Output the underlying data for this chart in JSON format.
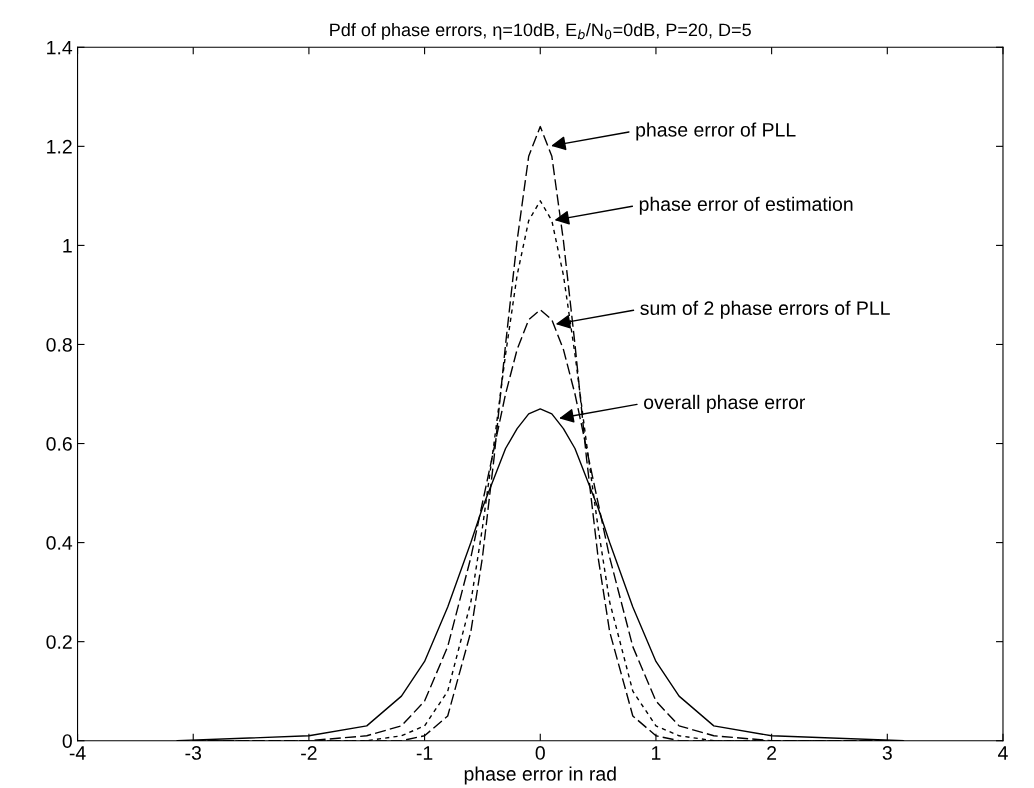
{
  "chart_data": {
    "type": "line",
    "title": "Pdf of phase errors, η=10dB, E$_{b}$/N$_{0}$=0dB, P=20, D=5",
    "xlabel": "phase error in rad",
    "xlim": [
      -4,
      4
    ],
    "xticks": [
      -4,
      -3,
      -2,
      -1,
      0,
      1,
      2,
      3,
      4
    ],
    "ylim": [
      0,
      1.4
    ],
    "yticks": [
      0,
      0.2,
      0.4,
      0.6,
      0.8,
      1,
      1.2,
      1.4
    ],
    "grid": false,
    "marker": "none",
    "series": [
      {
        "color": "#000000",
        "line_style": "dashed",
        "x": [
          -3.14,
          -2,
          -1.5,
          -1.2,
          -1,
          -0.8,
          -0.6,
          -0.5,
          -0.4,
          -0.3,
          -0.2,
          -0.1,
          0,
          0.1,
          0.2,
          0.3,
          0.4,
          0.5,
          0.6,
          0.8,
          1,
          1.2,
          1.5,
          2,
          3.14
        ],
        "values": [
          0,
          0,
          0,
          0,
          0.01,
          0.05,
          0.22,
          0.37,
          0.57,
          0.8,
          1.01,
          1.18,
          1.24,
          1.18,
          1.01,
          0.8,
          0.57,
          0.37,
          0.22,
          0.05,
          0.01,
          0,
          0,
          0,
          0
        ]
      },
      {
        "color": "#000000",
        "line_style": "dotted",
        "x": [
          -3.14,
          -2,
          -1.5,
          -1.2,
          -1,
          -0.8,
          -0.6,
          -0.5,
          -0.4,
          -0.3,
          -0.2,
          -0.1,
          0,
          0.1,
          0.2,
          0.3,
          0.4,
          0.5,
          0.6,
          0.8,
          1,
          1.2,
          1.5,
          2,
          3.14
        ],
        "values": [
          0,
          0,
          0,
          0.01,
          0.03,
          0.1,
          0.28,
          0.43,
          0.6,
          0.78,
          0.94,
          1.05,
          1.09,
          1.05,
          0.94,
          0.78,
          0.6,
          0.43,
          0.28,
          0.1,
          0.03,
          0.01,
          0,
          0,
          0
        ]
      },
      {
        "color": "#000000",
        "line_style": "dashed",
        "x": [
          -3.14,
          -2,
          -1.5,
          -1.2,
          -1,
          -0.8,
          -0.6,
          -0.5,
          -0.4,
          -0.3,
          -0.2,
          -0.1,
          0,
          0.1,
          0.2,
          0.3,
          0.4,
          0.5,
          0.6,
          0.8,
          1,
          1.2,
          1.5,
          2,
          3.14
        ],
        "values": [
          0,
          0,
          0.01,
          0.03,
          0.08,
          0.19,
          0.37,
          0.48,
          0.59,
          0.7,
          0.79,
          0.85,
          0.87,
          0.85,
          0.79,
          0.7,
          0.59,
          0.48,
          0.37,
          0.19,
          0.08,
          0.03,
          0.01,
          0,
          0
        ]
      },
      {
        "color": "#000000",
        "line_style": "solid",
        "x": [
          -3.14,
          -2,
          -1.5,
          -1.2,
          -1,
          -0.8,
          -0.6,
          -0.5,
          -0.4,
          -0.3,
          -0.2,
          -0.1,
          0,
          0.1,
          0.2,
          0.3,
          0.4,
          0.5,
          0.6,
          0.8,
          1,
          1.2,
          1.5,
          2,
          3.14
        ],
        "values": [
          0,
          0.01,
          0.03,
          0.09,
          0.16,
          0.27,
          0.4,
          0.47,
          0.53,
          0.59,
          0.63,
          0.66,
          0.67,
          0.66,
          0.63,
          0.59,
          0.53,
          0.47,
          0.4,
          0.27,
          0.16,
          0.09,
          0.03,
          0.01,
          0
        ]
      }
    ],
    "annotations": [
      {
        "text": "phase error of PLL",
        "x": 0.07,
        "y": 1.2
      },
      {
        "text": "phase error of estimation",
        "x": 0.1,
        "y": 1.05
      },
      {
        "text": "sum of 2 phase errors of PLL",
        "x": 0.11,
        "y": 0.84
      },
      {
        "text": "overall phase error",
        "x": 0.14,
        "y": 0.65
      }
    ]
  }
}
